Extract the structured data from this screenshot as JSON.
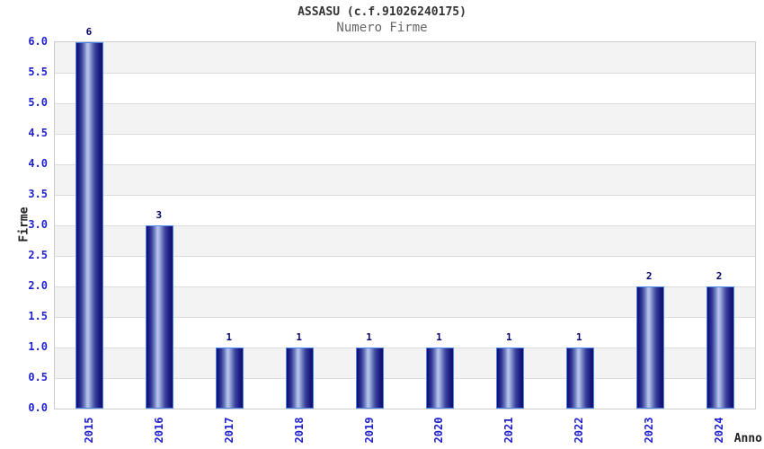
{
  "chart": {
    "title": "ASSASU (c.f.91026240175)",
    "subtitle": "Numero Firme",
    "y_axis_label": "Firme",
    "x_axis_label": "Anno"
  },
  "chart_data": {
    "type": "bar",
    "title": "ASSASU (c.f.91026240175)",
    "subtitle": "Numero Firme",
    "xlabel": "Anno",
    "ylabel": "Firme",
    "categories": [
      "2015",
      "2016",
      "2017",
      "2018",
      "2019",
      "2020",
      "2021",
      "2022",
      "2023",
      "2024"
    ],
    "values": [
      6,
      3,
      1,
      1,
      1,
      1,
      1,
      1,
      2,
      2
    ],
    "value_labels": [
      "6",
      "3",
      "1",
      "1",
      "1",
      "1",
      "1",
      "1",
      "2",
      "2"
    ],
    "ylim": [
      0,
      6
    ],
    "ytick_step": 0.5,
    "ytick_labels": [
      "0.0",
      "0.5",
      "1.0",
      "1.5",
      "2.0",
      "2.5",
      "3.0",
      "3.5",
      "4.0",
      "4.5",
      "5.0",
      "5.5",
      "6.0"
    ],
    "grid": true,
    "legend": "none",
    "colors": {
      "bar_dark": "#0f0f6e",
      "bar_highlight": "#b9c6ec",
      "bar_outline": "#4c84ea",
      "tick_label": "#2020cc",
      "value_label": "#000066",
      "band_gray": "#f3f3f3",
      "band_white": "#ffffff",
      "gridline": "#dcdcdc",
      "plot_border": "#cccccc",
      "title": "#333333",
      "subtitle": "#666666",
      "axis_label": "#222222"
    }
  }
}
